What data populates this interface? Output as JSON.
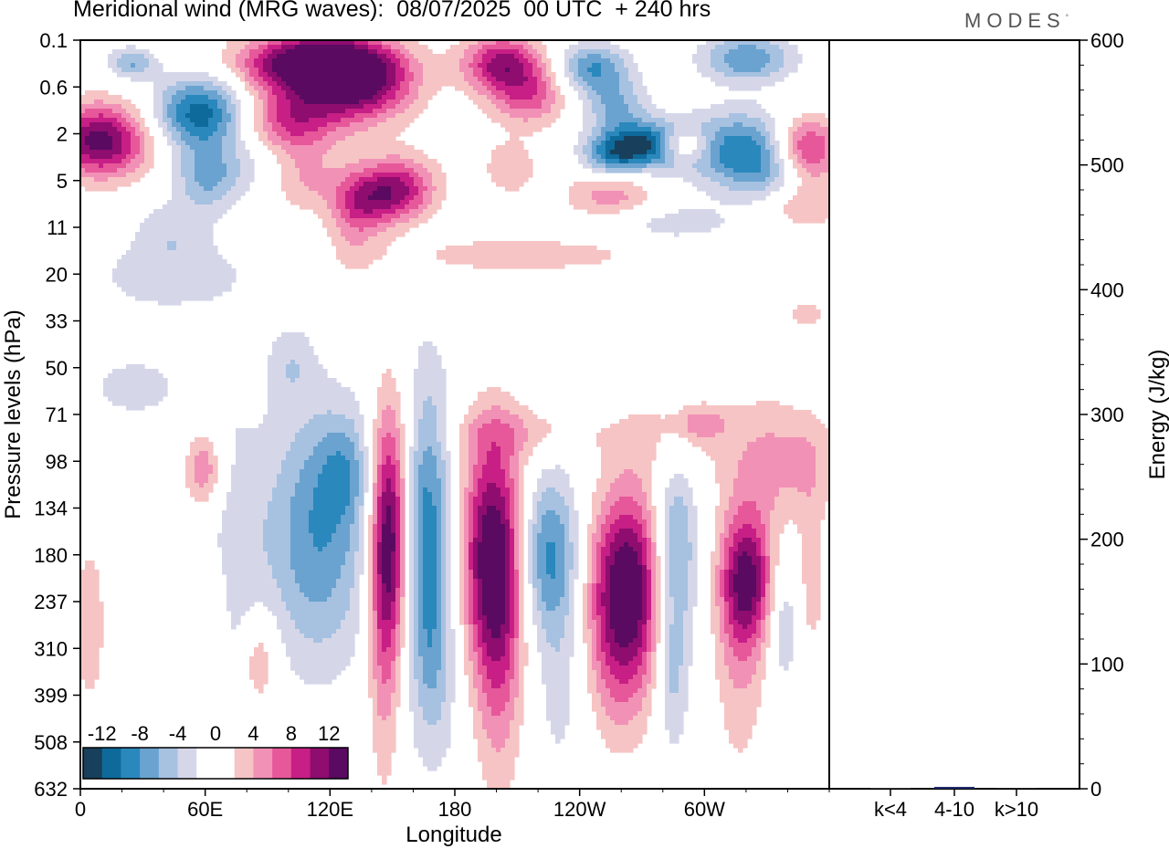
{
  "title": "Meridional wind (MRG waves):  08/07/2025  00 UTC  + 240 hrs",
  "logo": "MODES",
  "colors": {
    "neg": [
      "#183f5c",
      "#0e6a9a",
      "#2a88bd",
      "#6aa3cf",
      "#a7c1e1",
      "#d5d7e9"
    ],
    "pos": [
      "#f6c4c4",
      "#f291b6",
      "#e6589a",
      "#c71f85",
      "#8e0d6e",
      "#5a0a60"
    ]
  },
  "chart_data": [
    {
      "type": "heatmap",
      "title": "Meridional wind (MRG waves):  08/07/2025  00 UTC  + 240 hrs",
      "xlabel": "Longitude",
      "ylabel": "Pressure levels (hPa)",
      "x_ticks": [
        "0",
        "60E",
        "120E",
        "180",
        "120W",
        "60W"
      ],
      "y_ticks": [
        "0.1",
        "0.6",
        "2",
        "5",
        "11",
        "20",
        "33",
        "50",
        "71",
        "98",
        "134",
        "180",
        "237",
        "310",
        "399",
        "508",
        "632"
      ],
      "colorbar": {
        "labels": [
          "-12",
          "-8",
          "-4",
          "0",
          "4",
          "8",
          "12"
        ],
        "levels": [
          -14,
          -12,
          -10,
          -8,
          -6,
          -4,
          -2,
          0,
          2,
          4,
          6,
          8,
          10,
          12,
          14
        ]
      },
      "grid": false
    },
    {
      "type": "bar",
      "categories": [
        "k<4",
        "4-10",
        "k>10"
      ],
      "values": [
        0.3,
        1.5,
        0.2
      ],
      "ylabel": "Energy (J/kg)",
      "ylim": [
        0,
        600
      ],
      "y_ticks": [
        "0",
        "100",
        "200",
        "300",
        "400",
        "500",
        "600"
      ]
    }
  ]
}
